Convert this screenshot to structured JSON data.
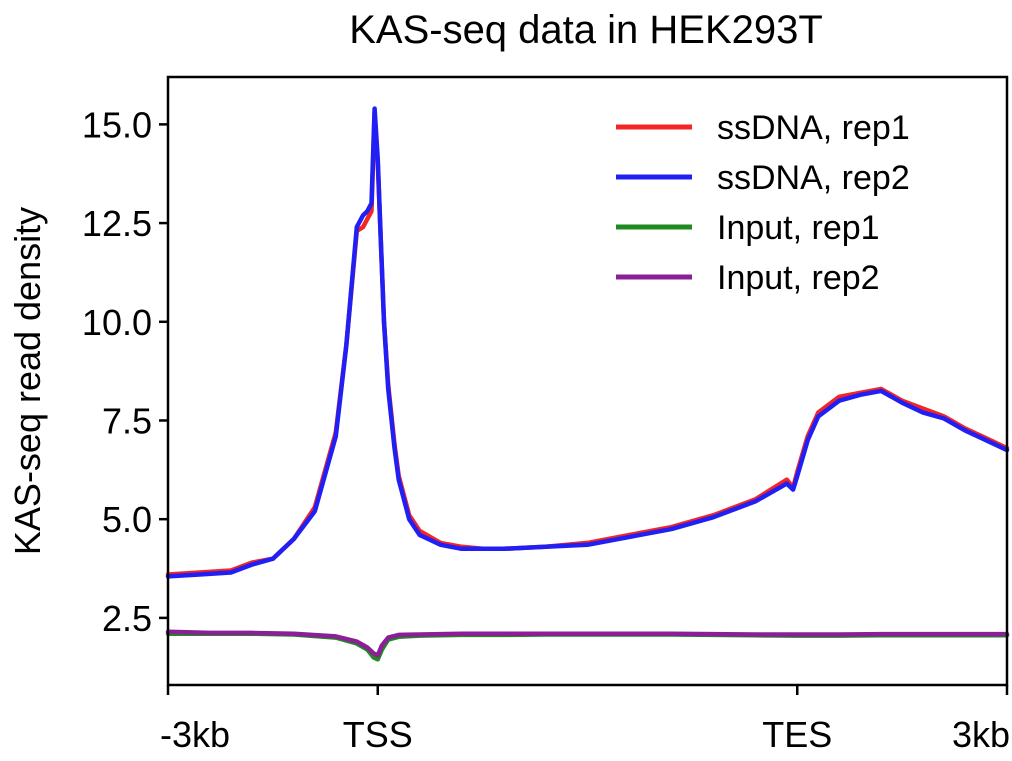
{
  "chart_data": {
    "type": "line",
    "title": "KAS-seq data in HEK293T",
    "xlabel": "",
    "ylabel": "KAS-seq read density",
    "xlim": [
      0,
      4
    ],
    "ylim": [
      0.8,
      16.2
    ],
    "x_ticks": [
      {
        "value": 0,
        "label": "-3kb"
      },
      {
        "value": 1,
        "label": "TSS"
      },
      {
        "value": 3,
        "label": "TES"
      },
      {
        "value": 4,
        "label": "3kb"
      }
    ],
    "y_ticks": [
      {
        "value": 2.5,
        "label": "2.5"
      },
      {
        "value": 5.0,
        "label": "5.0"
      },
      {
        "value": 7.5,
        "label": "7.5"
      },
      {
        "value": 10.0,
        "label": "10.0"
      },
      {
        "value": 12.5,
        "label": "12.5"
      },
      {
        "value": 15.0,
        "label": "15.0"
      }
    ],
    "legend_position": "top-right",
    "grid": false,
    "series": [
      {
        "name": "ssDNA, rep1",
        "color": "#f42525",
        "x": [
          0,
          0.15,
          0.3,
          0.4,
          0.5,
          0.6,
          0.7,
          0.8,
          0.85,
          0.9,
          0.93,
          0.95,
          0.97,
          0.985,
          1.0,
          1.015,
          1.03,
          1.05,
          1.08,
          1.1,
          1.15,
          1.2,
          1.3,
          1.4,
          1.5,
          1.6,
          1.8,
          2.0,
          2.2,
          2.4,
          2.6,
          2.8,
          2.95,
          2.98,
          3.0,
          3.05,
          3.1,
          3.2,
          3.3,
          3.4,
          3.5,
          3.6,
          3.7,
          3.8,
          3.9,
          4.0
        ],
        "y": [
          3.6,
          3.65,
          3.7,
          3.9,
          4.0,
          4.5,
          5.3,
          7.2,
          9.4,
          12.3,
          12.4,
          12.6,
          12.8,
          15.3,
          14.0,
          12.0,
          10.0,
          8.4,
          6.9,
          6.1,
          5.1,
          4.7,
          4.4,
          4.3,
          4.25,
          4.25,
          4.3,
          4.4,
          4.6,
          4.8,
          5.1,
          5.5,
          6.0,
          5.8,
          6.2,
          7.1,
          7.7,
          8.1,
          8.2,
          8.3,
          8.0,
          7.8,
          7.6,
          7.3,
          7.05,
          6.8
        ]
      },
      {
        "name": "ssDNA, rep2",
        "color": "#2020f5",
        "x": [
          0,
          0.15,
          0.3,
          0.4,
          0.5,
          0.6,
          0.7,
          0.8,
          0.85,
          0.9,
          0.93,
          0.95,
          0.97,
          0.985,
          1.0,
          1.015,
          1.03,
          1.05,
          1.08,
          1.1,
          1.15,
          1.2,
          1.3,
          1.4,
          1.5,
          1.6,
          1.8,
          2.0,
          2.2,
          2.4,
          2.6,
          2.8,
          2.95,
          2.98,
          3.0,
          3.05,
          3.1,
          3.2,
          3.3,
          3.4,
          3.5,
          3.6,
          3.7,
          3.8,
          3.9,
          4.0
        ],
        "y": [
          3.55,
          3.6,
          3.65,
          3.85,
          4.0,
          4.5,
          5.2,
          7.1,
          9.4,
          12.4,
          12.7,
          12.8,
          13.0,
          15.4,
          14.1,
          12.0,
          10.0,
          8.3,
          6.8,
          6.0,
          5.0,
          4.6,
          4.35,
          4.25,
          4.25,
          4.25,
          4.3,
          4.35,
          4.55,
          4.75,
          5.05,
          5.45,
          5.9,
          5.75,
          6.1,
          7.0,
          7.6,
          8.0,
          8.15,
          8.25,
          7.95,
          7.7,
          7.55,
          7.25,
          7.0,
          6.75
        ]
      },
      {
        "name": "Input, rep1",
        "color": "#1f8a1f",
        "x": [
          0,
          0.2,
          0.4,
          0.6,
          0.8,
          0.9,
          0.95,
          0.98,
          1.0,
          1.02,
          1.05,
          1.1,
          1.2,
          1.4,
          1.6,
          1.8,
          2.0,
          2.2,
          2.4,
          2.6,
          2.8,
          3.0,
          3.2,
          3.4,
          3.6,
          3.8,
          4.0
        ],
        "y": [
          2.1,
          2.1,
          2.1,
          2.08,
          2.0,
          1.85,
          1.7,
          1.5,
          1.45,
          1.7,
          1.95,
          2.02,
          2.05,
          2.07,
          2.07,
          2.08,
          2.08,
          2.08,
          2.08,
          2.07,
          2.06,
          2.05,
          2.05,
          2.06,
          2.06,
          2.06,
          2.06
        ]
      },
      {
        "name": "Input, rep2",
        "color": "#8a1f98",
        "x": [
          0,
          0.2,
          0.4,
          0.6,
          0.8,
          0.9,
          0.95,
          0.98,
          1.0,
          1.02,
          1.05,
          1.1,
          1.2,
          1.4,
          1.6,
          1.8,
          2.0,
          2.2,
          2.4,
          2.6,
          2.8,
          3.0,
          3.2,
          3.4,
          3.6,
          3.8,
          4.0
        ],
        "y": [
          2.15,
          2.12,
          2.12,
          2.1,
          2.03,
          1.9,
          1.75,
          1.6,
          1.55,
          1.8,
          2.0,
          2.07,
          2.08,
          2.1,
          2.1,
          2.1,
          2.1,
          2.1,
          2.1,
          2.09,
          2.08,
          2.08,
          2.08,
          2.09,
          2.09,
          2.09,
          2.09
        ]
      }
    ]
  }
}
